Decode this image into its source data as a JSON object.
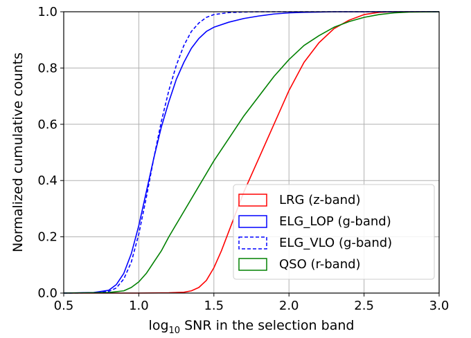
{
  "chart_data": {
    "type": "line",
    "title": "",
    "xlabel_prefix": "log",
    "xlabel_sub": "10",
    "xlabel_rest": " SNR in the selection band",
    "ylabel": "Normalized cumulative counts",
    "xlim": [
      0.5,
      3.0
    ],
    "ylim": [
      0.0,
      1.0
    ],
    "xticks": [
      "0.5",
      "1.0",
      "1.5",
      "2.0",
      "2.5",
      "3.0"
    ],
    "yticks": [
      "0.0",
      "0.2",
      "0.4",
      "0.6",
      "0.8",
      "1.0"
    ],
    "grid": true,
    "legend_position": "lower-right",
    "series": [
      {
        "name": "LRG (z-band)",
        "color": "#ff0000",
        "dash": "solid",
        "x": [
          0.5,
          1.0,
          1.2,
          1.3,
          1.35,
          1.4,
          1.45,
          1.5,
          1.55,
          1.6,
          1.65,
          1.7,
          1.75,
          1.8,
          1.9,
          2.0,
          2.1,
          2.2,
          2.3,
          2.4,
          2.5,
          2.6,
          2.7,
          3.0
        ],
        "y": [
          0.0,
          0.0,
          0.001,
          0.003,
          0.008,
          0.02,
          0.045,
          0.09,
          0.15,
          0.22,
          0.29,
          0.36,
          0.42,
          0.48,
          0.6,
          0.72,
          0.82,
          0.89,
          0.94,
          0.97,
          0.99,
          0.998,
          1.0,
          1.0
        ]
      },
      {
        "name": "ELG_LOP (g-band)",
        "color": "#0000ff",
        "dash": "solid",
        "x": [
          0.5,
          0.7,
          0.8,
          0.85,
          0.9,
          0.95,
          1.0,
          1.05,
          1.1,
          1.15,
          1.2,
          1.25,
          1.3,
          1.35,
          1.4,
          1.45,
          1.5,
          1.6,
          1.7,
          1.8,
          1.9,
          2.0,
          2.1,
          2.2,
          2.3,
          2.4,
          3.0
        ],
        "y": [
          0.0,
          0.002,
          0.01,
          0.03,
          0.07,
          0.14,
          0.24,
          0.36,
          0.48,
          0.59,
          0.68,
          0.76,
          0.82,
          0.87,
          0.905,
          0.93,
          0.945,
          0.963,
          0.976,
          0.985,
          0.992,
          0.996,
          0.998,
          0.999,
          1.0,
          1.0,
          1.0
        ]
      },
      {
        "name": "ELG_VLO (g-band)",
        "color": "#0000ff",
        "dash": "dashed",
        "x": [
          0.5,
          0.7,
          0.8,
          0.85,
          0.9,
          0.95,
          1.0,
          1.05,
          1.1,
          1.15,
          1.2,
          1.25,
          1.3,
          1.35,
          1.4,
          1.45,
          1.5,
          1.6,
          1.7,
          1.8,
          3.0
        ],
        "y": [
          0.0,
          0.001,
          0.006,
          0.018,
          0.05,
          0.11,
          0.21,
          0.34,
          0.48,
          0.61,
          0.72,
          0.81,
          0.88,
          0.93,
          0.96,
          0.98,
          0.99,
          0.997,
          0.999,
          1.0,
          1.0
        ]
      },
      {
        "name": "QSO (r-band)",
        "color": "#008000",
        "dash": "solid",
        "x": [
          0.5,
          0.8,
          0.9,
          0.95,
          1.0,
          1.05,
          1.1,
          1.15,
          1.2,
          1.3,
          1.4,
          1.5,
          1.6,
          1.7,
          1.8,
          1.9,
          2.0,
          2.1,
          2.2,
          2.3,
          2.4,
          2.5,
          2.6,
          2.7,
          2.8,
          3.0
        ],
        "y": [
          0.0,
          0.002,
          0.008,
          0.02,
          0.04,
          0.07,
          0.11,
          0.15,
          0.2,
          0.29,
          0.38,
          0.47,
          0.55,
          0.63,
          0.7,
          0.77,
          0.83,
          0.88,
          0.915,
          0.945,
          0.965,
          0.98,
          0.99,
          0.996,
          0.999,
          1.0
        ]
      }
    ]
  }
}
